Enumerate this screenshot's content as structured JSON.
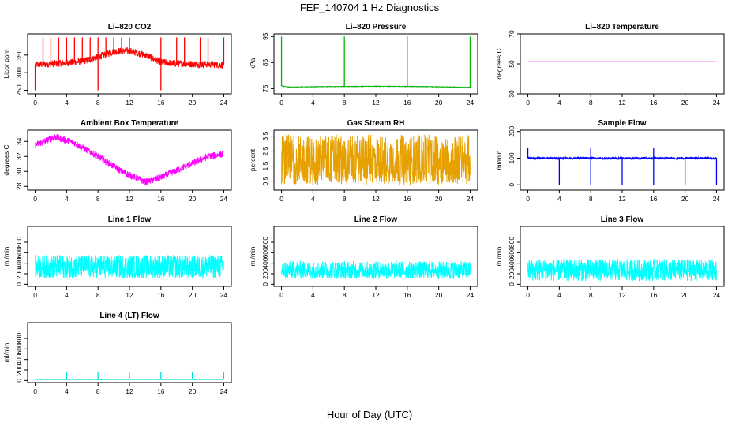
{
  "figure": {
    "title": "FEF_140704  1 Hz Diagnostics",
    "xlabel": "Hour of Day (UTC)"
  },
  "chart_data": [
    {
      "id": "co2",
      "type": "line",
      "title": "Li–820 CO2",
      "ylabel": "Licor ppm",
      "color": "#ff0000",
      "xlim": [
        0,
        24
      ],
      "ylim": [
        240,
        410
      ],
      "xticks": [
        "0",
        "4",
        "8",
        "12",
        "16",
        "20",
        "24"
      ],
      "xtick_values": [
        0,
        4,
        8,
        12,
        16,
        20,
        24
      ],
      "yticks": [
        "250",
        "300",
        "350"
      ],
      "ytick_values": [
        250,
        300,
        350
      ],
      "series": [
        {
          "base": [
            [
              0,
              323
            ],
            [
              2,
              325
            ],
            [
              4,
              328
            ],
            [
              6,
              332
            ],
            [
              8,
              345
            ],
            [
              10,
              360
            ],
            [
              12,
              362
            ],
            [
              14,
              350
            ],
            [
              16,
              330
            ],
            [
              18,
              326
            ],
            [
              20,
              325
            ],
            [
              22,
              324
            ],
            [
              24,
              322
            ]
          ],
          "noise": 10,
          "spikes_up": [
            1,
            2,
            3,
            4,
            5,
            6,
            7,
            8,
            9,
            10,
            11,
            12,
            16,
            18,
            19,
            21,
            22,
            24
          ],
          "spike_up_value": 400,
          "spikes_down": [
            0,
            8,
            16
          ],
          "spike_down_value": 250
        }
      ]
    },
    {
      "id": "pressure",
      "type": "line",
      "title": "Li–820 Pressure",
      "ylabel": "kPa",
      "color": "#00b400",
      "xlim": [
        0,
        24
      ],
      "ylim": [
        73,
        96
      ],
      "xticks": [
        "0",
        "4",
        "8",
        "12",
        "16",
        "20",
        "24"
      ],
      "xtick_values": [
        0,
        4,
        8,
        12,
        16,
        20,
        24
      ],
      "yticks": [
        "75",
        "85",
        "95"
      ],
      "ytick_values": [
        75,
        85,
        95
      ],
      "series": [
        {
          "base": [
            [
              0,
              76
            ],
            [
              1,
              75.6
            ],
            [
              6,
              75.8
            ],
            [
              12,
              75.9
            ],
            [
              18,
              75.8
            ],
            [
              24,
              75.5
            ]
          ],
          "noise": 0.1,
          "spikes_up": [
            0,
            8,
            16,
            24
          ],
          "spike_up_value": 95
        }
      ]
    },
    {
      "id": "licor-temp",
      "type": "line",
      "title": "Li–820 Temperature",
      "ylabel": "degrees C",
      "color": "#dd00dd",
      "xlim": [
        0,
        24
      ],
      "ylim": [
        30,
        70
      ],
      "xticks": [
        "0",
        "4",
        "8",
        "12",
        "16",
        "20",
        "24"
      ],
      "xtick_values": [
        0,
        4,
        8,
        12,
        16,
        20,
        24
      ],
      "yticks": [
        "30",
        "50",
        "70"
      ],
      "ytick_values": [
        30,
        50,
        70
      ],
      "series": [
        {
          "base": [
            [
              0,
              51.5
            ],
            [
              24,
              51.5
            ]
          ],
          "noise": 0
        }
      ]
    },
    {
      "id": "box-temp",
      "type": "line",
      "title": "Ambient Box Temperature",
      "ylabel": "degrees C",
      "color": "#ff00ff",
      "xlim": [
        0,
        24
      ],
      "ylim": [
        27.5,
        35.5
      ],
      "xticks": [
        "0",
        "4",
        "8",
        "12",
        "16",
        "20",
        "24"
      ],
      "xtick_values": [
        0,
        4,
        8,
        12,
        16,
        20,
        24
      ],
      "yticks": [
        "28",
        "30",
        "32",
        "34"
      ],
      "ytick_values": [
        28,
        30,
        32,
        34
      ],
      "series": [
        {
          "base": [
            [
              0,
              33.5
            ],
            [
              2.5,
              34.6
            ],
            [
              5,
              33.8
            ],
            [
              8,
              32
            ],
            [
              11,
              30
            ],
            [
              14,
              28.6
            ],
            [
              16,
              29.2
            ],
            [
              19,
              30.6
            ],
            [
              22,
              32
            ],
            [
              24,
              32.3
            ]
          ],
          "noise": 0.45
        }
      ]
    },
    {
      "id": "rh",
      "type": "line",
      "title": "Gas Stream RH",
      "ylabel": "percent",
      "color": "#e6a000",
      "xlim": [
        0,
        24
      ],
      "ylim": [
        -0.1,
        3.9
      ],
      "xticks": [
        "0",
        "4",
        "8",
        "12",
        "16",
        "20",
        "24"
      ],
      "xtick_values": [
        0,
        4,
        8,
        12,
        16,
        20,
        24
      ],
      "yticks": [
        "0.5",
        "1.5",
        "2.5",
        "3.5"
      ],
      "ytick_values": [
        0.5,
        1.5,
        2.5,
        3.5
      ],
      "series": [
        {
          "base": [
            [
              0,
              2
            ],
            [
              24,
              2
            ]
          ],
          "noise": 1.4,
          "band": [
            0.3,
            3.6
          ]
        }
      ]
    },
    {
      "id": "sample-flow",
      "type": "line",
      "title": "Sample Flow",
      "ylabel": "ml/min",
      "color": "#0000ff",
      "xlim": [
        0,
        24
      ],
      "ylim": [
        -20,
        205
      ],
      "xticks": [
        "0",
        "4",
        "8",
        "12",
        "16",
        "20",
        "24"
      ],
      "xtick_values": [
        0,
        4,
        8,
        12,
        16,
        20,
        24
      ],
      "yticks": [
        "0",
        "100",
        "200"
      ],
      "ytick_values": [
        0,
        100,
        200
      ],
      "series": [
        {
          "base": [
            [
              0,
              100
            ],
            [
              24,
              100
            ]
          ],
          "noise": 4,
          "spikes_up": [
            0,
            8,
            16
          ],
          "spike_up_value": 140,
          "spikes_down": [
            4,
            8,
            12,
            16,
            20,
            24
          ],
          "spike_down_value": 0
        }
      ]
    },
    {
      "id": "line1-flow",
      "type": "line",
      "title": "Line 1 Flow",
      "ylabel": "ml/min",
      "color": "#00ffff",
      "xlim": [
        0,
        24
      ],
      "ylim": [
        -40,
        1100
      ],
      "xticks": [
        "0",
        "4",
        "8",
        "12",
        "16",
        "20",
        "24"
      ],
      "xtick_values": [
        0,
        4,
        8,
        12,
        16,
        20,
        24
      ],
      "yticks": [
        "0",
        "200",
        "400",
        "600",
        "800"
      ],
      "ytick_values": [
        0,
        200,
        400,
        600,
        800
      ],
      "series": [
        {
          "base": [
            [
              0,
              330
            ],
            [
              24,
              330
            ]
          ],
          "noise": 220,
          "band": [
            110,
            560
          ]
        }
      ]
    },
    {
      "id": "line2-flow",
      "type": "line",
      "title": "Line 2 Flow",
      "ylabel": "ml/min",
      "color": "#00ffff",
      "xlim": [
        0,
        24
      ],
      "ylim": [
        -40,
        1100
      ],
      "xticks": [
        "0",
        "4",
        "8",
        "12",
        "16",
        "20",
        "24"
      ],
      "xtick_values": [
        0,
        4,
        8,
        12,
        16,
        20,
        24
      ],
      "yticks": [
        "0",
        "200",
        "400",
        "600",
        "800"
      ],
      "ytick_values": [
        0,
        200,
        400,
        600,
        800
      ],
      "series": [
        {
          "base": [
            [
              0,
              280
            ],
            [
              24,
              280
            ]
          ],
          "noise": 160,
          "band": [
            100,
            440
          ]
        }
      ]
    },
    {
      "id": "line3-flow",
      "type": "line",
      "title": "Line 3 Flow",
      "ylabel": "ml/min",
      "color": "#00ffff",
      "xlim": [
        0,
        24
      ],
      "ylim": [
        -40,
        1100
      ],
      "xticks": [
        "0",
        "4",
        "8",
        "12",
        "16",
        "20",
        "24"
      ],
      "xtick_values": [
        0,
        4,
        8,
        12,
        16,
        20,
        24
      ],
      "yticks": [
        "0",
        "200",
        "400",
        "600",
        "800"
      ],
      "ytick_values": [
        0,
        200,
        400,
        600,
        800
      ],
      "series": [
        {
          "base": [
            [
              0,
              260
            ],
            [
              24,
              260
            ]
          ],
          "noise": 220,
          "band": [
            60,
            480
          ]
        }
      ]
    },
    {
      "id": "line4-flow",
      "type": "line",
      "title": "Line 4 (LT) Flow",
      "ylabel": "ml/min",
      "color": "#00e0e0",
      "xlim": [
        0,
        24
      ],
      "ylim": [
        -40,
        1100
      ],
      "xticks": [
        "0",
        "4",
        "8",
        "12",
        "16",
        "20",
        "24"
      ],
      "xtick_values": [
        0,
        4,
        8,
        12,
        16,
        20,
        24
      ],
      "yticks": [
        "0",
        "200",
        "400",
        "600",
        "800"
      ],
      "ytick_values": [
        0,
        200,
        400,
        600,
        800
      ],
      "series": [
        {
          "base": [
            [
              0,
              20
            ],
            [
              24,
              20
            ]
          ],
          "noise": 4,
          "spikes_up": [
            4,
            8,
            12,
            16,
            20,
            24
          ],
          "spike_up_value": 160
        }
      ]
    }
  ]
}
